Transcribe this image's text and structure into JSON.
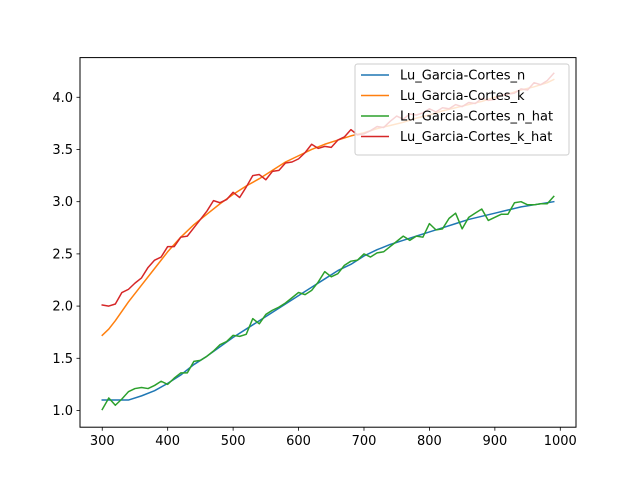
{
  "chart_data": {
    "type": "line",
    "xlim": [
      266,
      1024
    ],
    "ylim": [
      0.84,
      4.38
    ],
    "xticks": [
      300,
      400,
      500,
      600,
      700,
      800,
      900,
      1000
    ],
    "yticks": [
      1.0,
      1.5,
      2.0,
      2.5,
      3.0,
      3.5,
      4.0
    ],
    "grid": false,
    "legend_position": "top-right",
    "series": [
      {
        "name": "Lu_Garcia-Cortes_n",
        "color": "#1f77b4",
        "x": [
          300,
          340,
          360,
          380,
          400,
          420,
          440,
          460,
          480,
          500,
          520,
          540,
          560,
          580,
          600,
          620,
          640,
          660,
          680,
          700,
          720,
          740,
          760,
          780,
          800,
          820,
          840,
          860,
          880,
          900,
          920,
          940,
          960,
          980,
          990
        ],
        "y": [
          1.1,
          1.1,
          1.14,
          1.19,
          1.26,
          1.34,
          1.44,
          1.52,
          1.61,
          1.7,
          1.78,
          1.86,
          1.94,
          2.02,
          2.1,
          2.18,
          2.26,
          2.34,
          2.4,
          2.48,
          2.54,
          2.59,
          2.63,
          2.67,
          2.71,
          2.75,
          2.79,
          2.83,
          2.86,
          2.89,
          2.92,
          2.95,
          2.97,
          2.99,
          3.0
        ]
      },
      {
        "name": "Lu_Garcia-Cortes_k",
        "color": "#ff7f0e",
        "x": [
          300,
          310,
          320,
          340,
          360,
          380,
          400,
          420,
          440,
          460,
          480,
          500,
          520,
          540,
          560,
          580,
          600,
          620,
          640,
          660,
          680,
          700,
          720,
          740,
          760,
          780,
          800,
          820,
          840,
          860,
          880,
          900,
          920,
          940,
          960,
          980,
          990
        ],
        "y": [
          1.72,
          1.78,
          1.86,
          2.04,
          2.2,
          2.36,
          2.52,
          2.66,
          2.78,
          2.88,
          2.98,
          3.07,
          3.15,
          3.22,
          3.3,
          3.38,
          3.44,
          3.5,
          3.55,
          3.59,
          3.63,
          3.66,
          3.7,
          3.73,
          3.76,
          3.8,
          3.83,
          3.87,
          3.9,
          3.93,
          3.96,
          4.0,
          4.03,
          4.07,
          4.1,
          4.14,
          4.17
        ]
      },
      {
        "name": "Lu_Garcia-Cortes_n_hat",
        "color": "#2ca02c",
        "x": [
          300,
          310,
          320,
          330,
          340,
          350,
          360,
          370,
          380,
          390,
          400,
          410,
          420,
          430,
          440,
          450,
          460,
          470,
          480,
          490,
          500,
          510,
          520,
          530,
          540,
          550,
          560,
          570,
          580,
          590,
          600,
          610,
          620,
          630,
          640,
          650,
          660,
          670,
          680,
          690,
          700,
          710,
          720,
          730,
          740,
          750,
          760,
          770,
          780,
          790,
          800,
          810,
          820,
          830,
          840,
          850,
          860,
          870,
          880,
          890,
          900,
          910,
          920,
          930,
          940,
          950,
          960,
          970,
          980,
          990
        ],
        "y": [
          1.01,
          1.12,
          1.05,
          1.11,
          1.18,
          1.21,
          1.22,
          1.21,
          1.24,
          1.28,
          1.25,
          1.31,
          1.36,
          1.36,
          1.47,
          1.48,
          1.52,
          1.57,
          1.63,
          1.66,
          1.72,
          1.71,
          1.73,
          1.88,
          1.83,
          1.92,
          1.96,
          1.99,
          2.03,
          2.08,
          2.13,
          2.11,
          2.15,
          2.23,
          2.33,
          2.28,
          2.31,
          2.39,
          2.43,
          2.44,
          2.5,
          2.47,
          2.51,
          2.52,
          2.57,
          2.62,
          2.67,
          2.63,
          2.67,
          2.66,
          2.79,
          2.73,
          2.74,
          2.84,
          2.89,
          2.74,
          2.85,
          2.89,
          2.93,
          2.82,
          2.85,
          2.88,
          2.88,
          2.99,
          3.0,
          2.97,
          2.97,
          2.98,
          2.98,
          3.05
        ]
      },
      {
        "name": "Lu_Garcia-Cortes_k_hat",
        "color": "#d62728",
        "x": [
          300,
          310,
          320,
          330,
          340,
          350,
          360,
          370,
          380,
          390,
          400,
          410,
          420,
          430,
          440,
          450,
          460,
          470,
          480,
          490,
          500,
          510,
          520,
          530,
          540,
          550,
          560,
          570,
          580,
          590,
          600,
          610,
          620,
          630,
          640,
          650,
          660,
          670,
          680,
          690,
          700,
          710,
          720,
          730,
          740,
          750,
          760,
          770,
          780,
          790,
          800,
          810,
          820,
          830,
          840,
          850,
          860,
          870,
          880,
          890,
          900,
          910,
          920,
          930,
          940,
          950,
          960,
          970,
          980,
          990
        ],
        "y": [
          2.01,
          2.0,
          2.02,
          2.13,
          2.16,
          2.22,
          2.27,
          2.37,
          2.44,
          2.47,
          2.57,
          2.57,
          2.66,
          2.67,
          2.75,
          2.83,
          2.91,
          3.01,
          2.99,
          3.02,
          3.09,
          3.04,
          3.14,
          3.25,
          3.26,
          3.21,
          3.29,
          3.3,
          3.37,
          3.38,
          3.41,
          3.47,
          3.55,
          3.51,
          3.53,
          3.52,
          3.59,
          3.62,
          3.69,
          3.64,
          3.65,
          3.68,
          3.72,
          3.71,
          3.77,
          3.82,
          3.79,
          3.84,
          3.83,
          3.85,
          3.89,
          3.86,
          3.9,
          3.89,
          3.93,
          3.91,
          3.95,
          3.94,
          3.99,
          3.97,
          3.98,
          4.02,
          4.03,
          4.04,
          4.08,
          4.07,
          4.14,
          4.12,
          4.16,
          4.23
        ]
      }
    ]
  }
}
